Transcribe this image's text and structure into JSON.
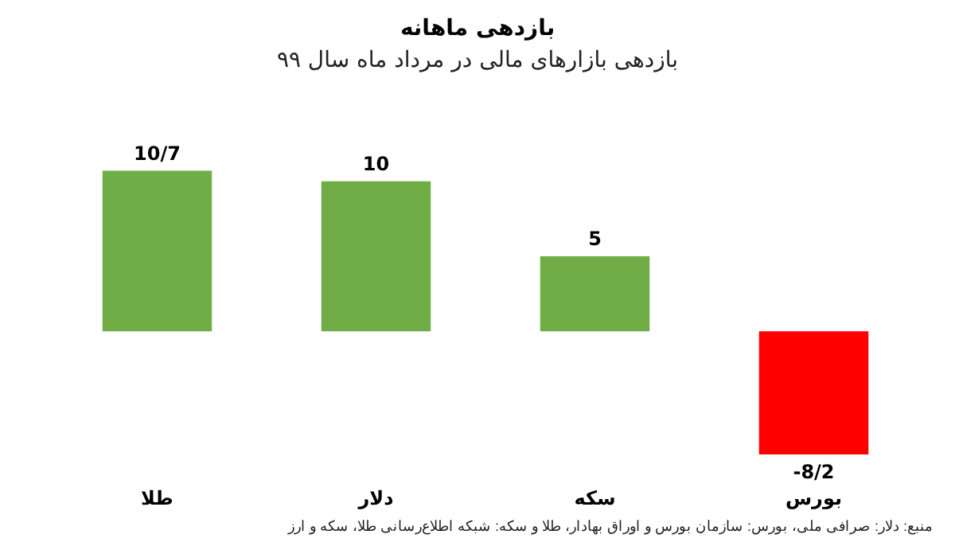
{
  "chart_data": {
    "type": "bar",
    "title": "بازدهی ماهانه",
    "subtitle": "بازدهی بازارهای مالی در مرداد ماه سال ۹۹",
    "categories": [
      "طلا",
      "دلار",
      "سکه",
      "بورس"
    ],
    "values": [
      10.7,
      10,
      5,
      -8.2
    ],
    "colors": [
      "#70ad47",
      "#70ad47",
      "#70ad47",
      "#ff0000"
    ],
    "value_labels": [
      "10/7",
      "10",
      "5",
      "-8/2"
    ],
    "tick_labels": "x",
    "annotations": [
      "منبع: دلار: صرافی ملی، بورس: سازمان بورس و اوراق بهادار، طلا و سکه: شبکه اطلاع‌رسانی طلا، سکه و ارز"
    ]
  }
}
